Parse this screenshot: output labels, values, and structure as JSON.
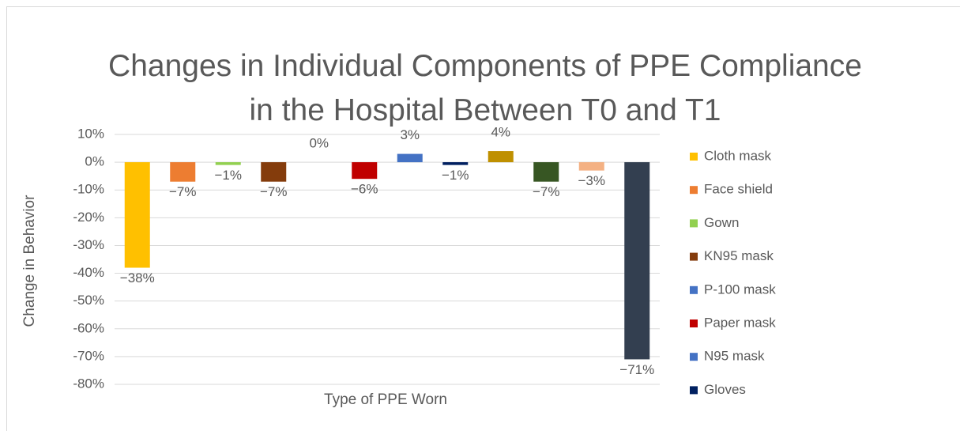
{
  "chart_data": {
    "type": "bar",
    "title": "Changes in Individual Components of PPE Compliance in the Hospital Between T0 and T1",
    "y_label": "Change in Behavior",
    "x_label": "Type of PPE Worn",
    "ylim": [
      -80,
      10
    ],
    "yticks": [
      {
        "value": 10,
        "label": "10%"
      },
      {
        "value": 0,
        "label": "0%"
      },
      {
        "value": -10,
        "label": "-10%"
      },
      {
        "value": -20,
        "label": "-20%"
      },
      {
        "value": -30,
        "label": "-30%"
      },
      {
        "value": -40,
        "label": "-40%"
      },
      {
        "value": -50,
        "label": "-50%"
      },
      {
        "value": -60,
        "label": "-60%"
      },
      {
        "value": -70,
        "label": "-70%"
      },
      {
        "value": -80,
        "label": "-80%"
      }
    ],
    "grid": true,
    "legend": "right",
    "series": [
      {
        "name": "Cloth mask",
        "color": "#ffc000",
        "values": [
          -38
        ],
        "value_labels": [
          "−38%"
        ]
      },
      {
        "name": "Face shield",
        "color": "#ed7d31",
        "values": [
          -7
        ],
        "value_labels": [
          "−7%"
        ]
      },
      {
        "name": "Gown",
        "color": "#92d050",
        "values": [
          -1
        ],
        "value_labels": [
          "−1%"
        ]
      },
      {
        "name": "KN95 mask",
        "color": "#843c0c",
        "values": [
          -7
        ],
        "value_labels": [
          "−7%"
        ]
      },
      {
        "name": "P-100 mask",
        "color": "#4472c4",
        "values": [
          0
        ],
        "value_labels": [
          "0%"
        ]
      },
      {
        "name": "Paper mask",
        "color": "#c00000",
        "values": [
          -6
        ],
        "value_labels": [
          "−6%"
        ]
      },
      {
        "name": "N95 mask",
        "color": "#4472c4",
        "values": [
          3
        ],
        "value_labels": [
          "3%"
        ]
      },
      {
        "name": "Gloves",
        "color": "#002060",
        "values": [
          -1
        ],
        "value_labels": [
          "−1%"
        ]
      },
      {
        "name": null,
        "color": "#bf9000",
        "values": [
          4
        ],
        "value_labels": [
          "4%"
        ]
      },
      {
        "name": null,
        "color": "#375623",
        "values": [
          -7
        ],
        "value_labels": [
          "−7%"
        ]
      },
      {
        "name": null,
        "color": "#f4b183",
        "values": [
          -3
        ],
        "value_labels": [
          "−3%"
        ]
      },
      {
        "name": null,
        "color": "#333f50",
        "values": [
          -71
        ],
        "value_labels": [
          "−71%"
        ]
      }
    ]
  }
}
